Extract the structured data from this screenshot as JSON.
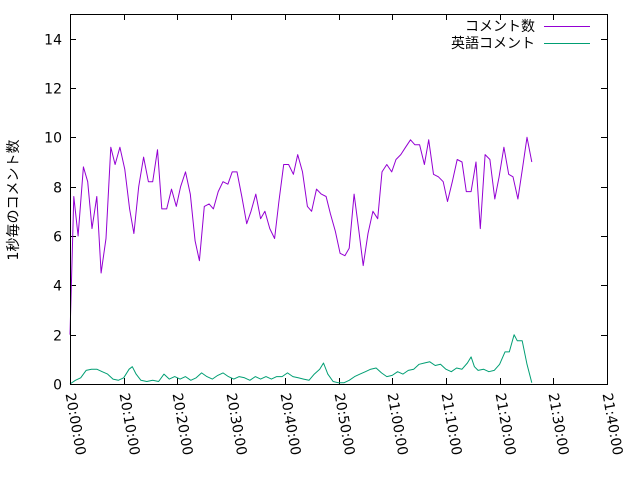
{
  "chart_data": {
    "type": "line",
    "title": "",
    "xlabel": "",
    "ylabel": "1秒毎のコメント数",
    "xlim_minutes": [
      0,
      100
    ],
    "ylim": [
      0,
      15
    ],
    "grid": false,
    "legend_position": "top-right",
    "x_tick_labels": [
      "20:00:00",
      "20:10:00",
      "20:20:00",
      "20:30:00",
      "20:40:00",
      "20:50:00",
      "21:00:00",
      "21:10:00",
      "21:20:00",
      "21:30:00",
      "21:40:00"
    ],
    "y_tick_labels": [
      "0",
      "2",
      "4",
      "6",
      "8",
      "10",
      "12",
      "14"
    ],
    "series": [
      {
        "name": "コメント数",
        "color": "#9400d3",
        "points": [
          [
            0,
            2.0
          ],
          [
            0.7,
            7.6
          ],
          [
            1.5,
            6.0
          ],
          [
            2.5,
            8.8
          ],
          [
            3.3,
            8.2
          ],
          [
            4.1,
            6.3
          ],
          [
            5.0,
            7.6
          ],
          [
            5.8,
            4.5
          ],
          [
            6.7,
            5.9
          ],
          [
            7.6,
            9.6
          ],
          [
            8.4,
            8.9
          ],
          [
            9.3,
            9.6
          ],
          [
            10.2,
            8.7
          ],
          [
            11.1,
            7.1
          ],
          [
            11.9,
            6.1
          ],
          [
            12.8,
            8.0
          ],
          [
            13.7,
            9.2
          ],
          [
            14.6,
            8.2
          ],
          [
            15.4,
            8.2
          ],
          [
            16.3,
            9.5
          ],
          [
            17.1,
            7.1
          ],
          [
            18.0,
            7.1
          ],
          [
            18.9,
            7.9
          ],
          [
            19.8,
            7.2
          ],
          [
            20.6,
            8.0
          ],
          [
            21.5,
            8.6
          ],
          [
            22.4,
            7.7
          ],
          [
            23.3,
            5.8
          ],
          [
            24.1,
            5.0
          ],
          [
            25.0,
            7.2
          ],
          [
            25.9,
            7.3
          ],
          [
            26.7,
            7.1
          ],
          [
            27.6,
            7.8
          ],
          [
            28.5,
            8.2
          ],
          [
            29.4,
            8.1
          ],
          [
            30.2,
            8.6
          ],
          [
            31.1,
            8.6
          ],
          [
            32.0,
            7.6
          ],
          [
            32.9,
            6.5
          ],
          [
            33.7,
            7.0
          ],
          [
            34.6,
            7.7
          ],
          [
            35.5,
            6.7
          ],
          [
            36.3,
            7.0
          ],
          [
            37.2,
            6.3
          ],
          [
            38.1,
            5.9
          ],
          [
            38.9,
            7.4
          ],
          [
            39.8,
            8.9
          ],
          [
            40.7,
            8.9
          ],
          [
            41.6,
            8.5
          ],
          [
            42.4,
            9.3
          ],
          [
            43.3,
            8.6
          ],
          [
            44.2,
            7.2
          ],
          [
            45.0,
            7.0
          ],
          [
            45.9,
            7.9
          ],
          [
            46.8,
            7.7
          ],
          [
            47.7,
            7.6
          ],
          [
            48.5,
            6.9
          ],
          [
            49.4,
            6.2
          ],
          [
            50.3,
            5.3
          ],
          [
            51.2,
            5.2
          ],
          [
            52.0,
            5.5
          ],
          [
            52.9,
            7.7
          ],
          [
            53.8,
            6.2
          ],
          [
            54.6,
            4.8
          ],
          [
            55.5,
            6.1
          ],
          [
            56.4,
            7.0
          ],
          [
            57.3,
            6.7
          ],
          [
            58.1,
            8.6
          ],
          [
            59.0,
            8.9
          ],
          [
            59.9,
            8.6
          ],
          [
            60.7,
            9.1
          ],
          [
            61.6,
            9.3
          ],
          [
            62.5,
            9.6
          ],
          [
            63.4,
            9.9
          ],
          [
            64.2,
            9.7
          ],
          [
            65.1,
            9.7
          ],
          [
            66.0,
            8.9
          ],
          [
            66.8,
            9.9
          ],
          [
            67.7,
            8.5
          ],
          [
            68.6,
            8.4
          ],
          [
            69.5,
            8.2
          ],
          [
            70.3,
            7.4
          ],
          [
            71.2,
            8.2
          ],
          [
            72.1,
            9.1
          ],
          [
            73.0,
            9.0
          ],
          [
            73.8,
            7.8
          ],
          [
            74.7,
            7.8
          ],
          [
            75.6,
            9.0
          ],
          [
            76.4,
            6.3
          ],
          [
            77.3,
            9.3
          ],
          [
            78.2,
            9.1
          ],
          [
            79.1,
            7.5
          ],
          [
            79.9,
            8.4
          ],
          [
            80.8,
            9.6
          ],
          [
            81.7,
            8.5
          ],
          [
            82.5,
            8.4
          ],
          [
            83.4,
            7.5
          ],
          [
            84.3,
            8.8
          ],
          [
            85.1,
            10.0
          ],
          [
            86.0,
            9.0
          ]
        ]
      },
      {
        "name": "英語コメント",
        "color": "#009e73",
        "points": [
          [
            0,
            0.0
          ],
          [
            1.0,
            0.15
          ],
          [
            2.0,
            0.25
          ],
          [
            3.0,
            0.55
          ],
          [
            4.0,
            0.6
          ],
          [
            5.0,
            0.6
          ],
          [
            6.0,
            0.5
          ],
          [
            7.0,
            0.4
          ],
          [
            8.0,
            0.2
          ],
          [
            9.0,
            0.15
          ],
          [
            10.0,
            0.25
          ],
          [
            11.0,
            0.6
          ],
          [
            11.6,
            0.7
          ],
          [
            12.3,
            0.4
          ],
          [
            13.2,
            0.15
          ],
          [
            14.3,
            0.1
          ],
          [
            15.4,
            0.15
          ],
          [
            16.5,
            0.1
          ],
          [
            17.5,
            0.4
          ],
          [
            18.5,
            0.2
          ],
          [
            19.5,
            0.3
          ],
          [
            20.5,
            0.2
          ],
          [
            21.5,
            0.3
          ],
          [
            22.5,
            0.15
          ],
          [
            23.5,
            0.25
          ],
          [
            24.5,
            0.45
          ],
          [
            25.5,
            0.3
          ],
          [
            26.5,
            0.2
          ],
          [
            27.5,
            0.35
          ],
          [
            28.5,
            0.45
          ],
          [
            29.5,
            0.3
          ],
          [
            30.5,
            0.2
          ],
          [
            31.5,
            0.3
          ],
          [
            32.5,
            0.25
          ],
          [
            33.5,
            0.15
          ],
          [
            34.5,
            0.3
          ],
          [
            35.5,
            0.2
          ],
          [
            36.5,
            0.3
          ],
          [
            37.5,
            0.2
          ],
          [
            38.5,
            0.3
          ],
          [
            39.5,
            0.3
          ],
          [
            40.5,
            0.45
          ],
          [
            41.5,
            0.3
          ],
          [
            42.5,
            0.25
          ],
          [
            43.5,
            0.2
          ],
          [
            44.5,
            0.15
          ],
          [
            45.5,
            0.4
          ],
          [
            46.5,
            0.6
          ],
          [
            47.2,
            0.85
          ],
          [
            48.0,
            0.4
          ],
          [
            49.0,
            0.1
          ],
          [
            50.0,
            0.05
          ],
          [
            51.0,
            0.05
          ],
          [
            52.0,
            0.15
          ],
          [
            53.0,
            0.3
          ],
          [
            54.0,
            0.4
          ],
          [
            55.0,
            0.5
          ],
          [
            56.0,
            0.6
          ],
          [
            57.0,
            0.65
          ],
          [
            58.0,
            0.45
          ],
          [
            59.0,
            0.3
          ],
          [
            60.0,
            0.35
          ],
          [
            61.0,
            0.5
          ],
          [
            62.0,
            0.4
          ],
          [
            63.0,
            0.55
          ],
          [
            64.0,
            0.6
          ],
          [
            65.0,
            0.8
          ],
          [
            66.0,
            0.85
          ],
          [
            67.0,
            0.9
          ],
          [
            68.0,
            0.75
          ],
          [
            69.0,
            0.8
          ],
          [
            70.0,
            0.6
          ],
          [
            71.0,
            0.5
          ],
          [
            72.0,
            0.65
          ],
          [
            73.0,
            0.6
          ],
          [
            74.0,
            0.85
          ],
          [
            74.7,
            1.1
          ],
          [
            75.3,
            0.7
          ],
          [
            76.0,
            0.55
          ],
          [
            77.0,
            0.6
          ],
          [
            78.0,
            0.5
          ],
          [
            79.0,
            0.55
          ],
          [
            80.0,
            0.8
          ],
          [
            81.0,
            1.3
          ],
          [
            81.8,
            1.3
          ],
          [
            82.7,
            2.0
          ],
          [
            83.3,
            1.75
          ],
          [
            84.2,
            1.75
          ],
          [
            85.1,
            0.8
          ],
          [
            86.0,
            0.05
          ]
        ]
      }
    ]
  }
}
